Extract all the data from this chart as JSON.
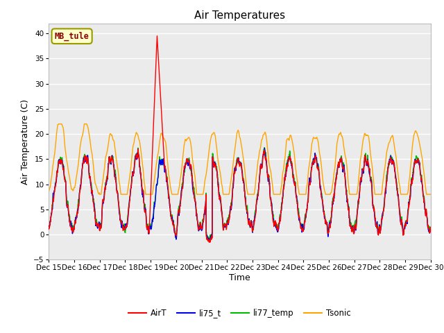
{
  "title": "Air Temperatures",
  "ylabel": "Air Temperature (C)",
  "xlabel": "Time",
  "annotation": "MB_tule",
  "ylim": [
    -5,
    42
  ],
  "yticks": [
    -5,
    0,
    5,
    10,
    15,
    20,
    25,
    30,
    35,
    40
  ],
  "xlim": [
    0,
    15
  ],
  "colors": {
    "AirT": "#FF0000",
    "li75_t": "#0000EE",
    "li77_temp": "#00BB00",
    "Tsonic": "#FFA500"
  },
  "legend_labels": [
    "AirT",
    "li75_t",
    "li77_temp",
    "Tsonic"
  ],
  "bg_plot": "#EBEBEB",
  "title_fontsize": 11,
  "label_fontsize": 9,
  "tick_fontsize": 7.5,
  "linewidth": 1.0
}
